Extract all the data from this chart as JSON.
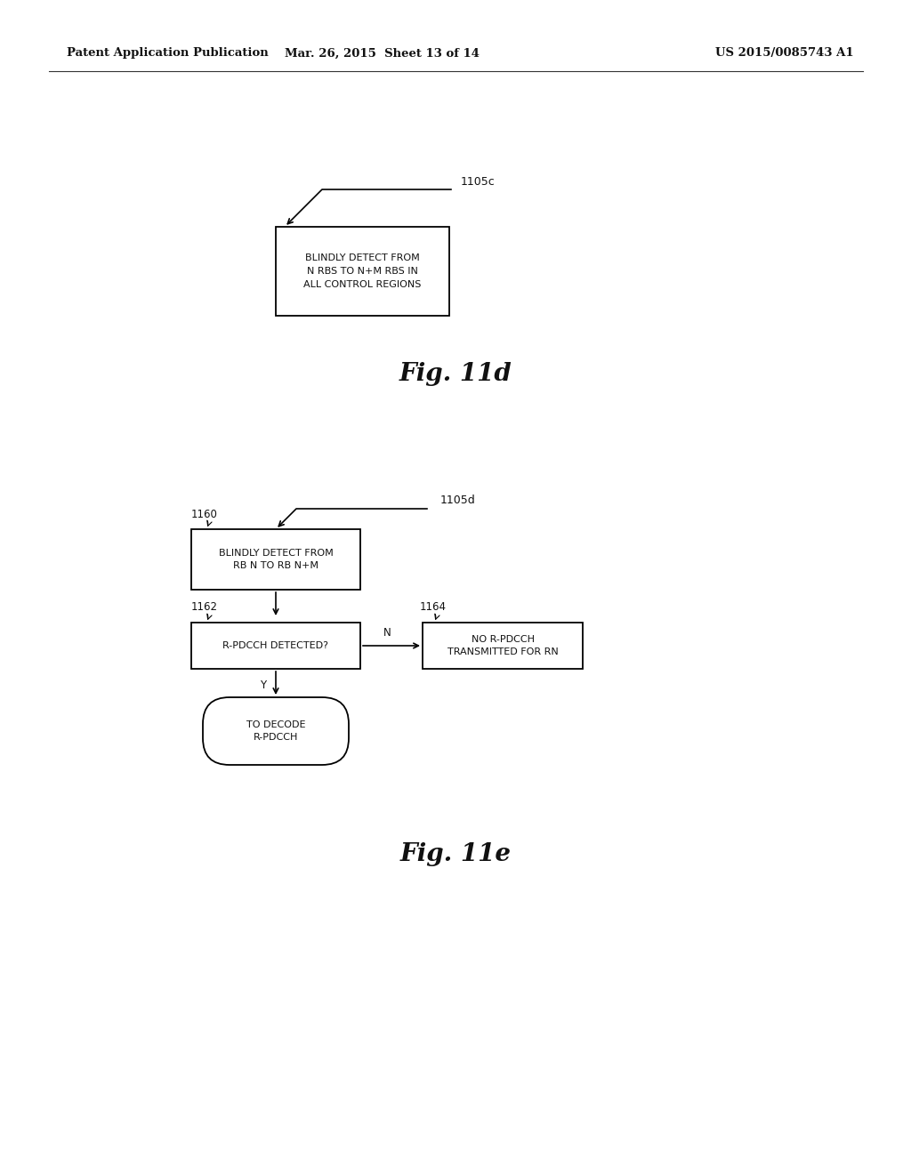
{
  "bg_color": "#ffffff",
  "header_left": "Patent Application Publication",
  "header_mid": "Mar. 26, 2015  Sheet 13 of 14",
  "header_right": "US 2015/0085743 A1",
  "fig11d_label": "Fig. 11d",
  "fig11e_label": "Fig. 11e",
  "fig11d": {
    "ref_label": "1105c",
    "box_text": "BLINDLY DETECT FROM\nN RBS TO N+M RBS IN\nALL CONTROL REGIONS"
  },
  "fig11e": {
    "ref_label": "1105d",
    "ref1": "1160",
    "ref2": "1162",
    "ref3": "1164",
    "box1_text": "BLINDLY DETECT FROM\nRB N TO RB N+M",
    "box2_text": "R-PDCCH DETECTED?",
    "box3_text": "NO R-PDCCH\nTRANSMITTED FOR RN",
    "oval_text": "TO DECODE\nR-PDCCH",
    "label_N": "N",
    "label_Y": "Y"
  }
}
